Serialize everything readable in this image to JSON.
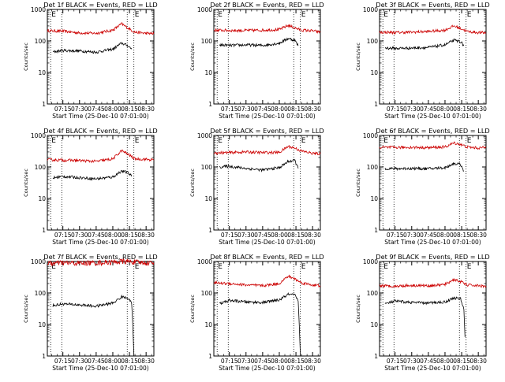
{
  "colors": {
    "events": "#000000",
    "lld": "#cc0000",
    "axes": "#000000",
    "background": "#ffffff"
  },
  "common": {
    "ylabel": "Counts/sec",
    "xlabel": "Start Time (25-Dec-10 07:01:00)",
    "marker_label": "E",
    "xticks": [
      "07:15",
      "07:30",
      "07:45",
      "08:00",
      "08:15",
      "08:30"
    ],
    "yticks": [
      "1",
      "10",
      "100",
      "1000"
    ]
  },
  "chart_data": [
    {
      "type": "line",
      "title": "Det 1f BLACK = Events, RED = LLD",
      "xlabel": "Start Time (25-Dec-10 07:01:00)",
      "ylabel": "Counts/sec",
      "yscale": "log",
      "ylim": [
        1,
        1000
      ],
      "xlim": [
        "07:01",
        "08:37"
      ],
      "x_ticks": [
        "07:15",
        "07:30",
        "07:45",
        "08:00",
        "08:15",
        "08:30"
      ],
      "markers": [
        "07:04",
        "07:14",
        "08:13",
        "08:19"
      ],
      "series": [
        {
          "name": "LLD",
          "x": [
            "07:01",
            "07:15",
            "07:30",
            "07:45",
            "08:00",
            "08:08",
            "08:14",
            "08:20",
            "08:30",
            "08:37"
          ],
          "values": [
            210,
            205,
            180,
            175,
            220,
            350,
            250,
            190,
            175,
            170
          ]
        },
        {
          "name": "Events",
          "x": [
            "07:06",
            "07:15",
            "07:30",
            "07:45",
            "08:00",
            "08:08",
            "08:14",
            "08:17"
          ],
          "values": [
            45,
            50,
            48,
            44,
            55,
            85,
            70,
            55
          ]
        }
      ]
    },
    {
      "type": "line",
      "title": "Det 2f BLACK = Events, RED = LLD",
      "xlabel": "Start Time (25-Dec-10 07:01:00)",
      "ylabel": "Counts/sec",
      "yscale": "log",
      "ylim": [
        1,
        1000
      ],
      "xlim": [
        "07:01",
        "08:37"
      ],
      "x_ticks": [
        "07:15",
        "07:30",
        "07:45",
        "08:00",
        "08:15",
        "08:30"
      ],
      "markers": [
        "07:04",
        "07:14",
        "08:13",
        "08:19"
      ],
      "series": [
        {
          "name": "LLD",
          "x": [
            "07:01",
            "07:15",
            "07:30",
            "07:45",
            "08:00",
            "08:08",
            "08:14",
            "08:20",
            "08:30",
            "08:37"
          ],
          "values": [
            220,
            215,
            215,
            220,
            230,
            310,
            260,
            220,
            210,
            190
          ]
        },
        {
          "name": "Events",
          "x": [
            "07:06",
            "07:15",
            "07:30",
            "07:45",
            "08:00",
            "08:08",
            "08:14",
            "08:17"
          ],
          "values": [
            75,
            72,
            75,
            72,
            85,
            120,
            105,
            70
          ]
        }
      ]
    },
    {
      "type": "line",
      "title": "Det 3f BLACK = Events, RED = LLD",
      "xlabel": "Start Time (25-Dec-10 07:01:00)",
      "ylabel": "Counts/sec",
      "yscale": "log",
      "ylim": [
        1,
        1000
      ],
      "xlim": [
        "07:01",
        "08:37"
      ],
      "x_ticks": [
        "07:15",
        "07:30",
        "07:45",
        "08:00",
        "08:15",
        "08:30"
      ],
      "markers": [
        "07:04",
        "07:14",
        "08:13",
        "08:19"
      ],
      "series": [
        {
          "name": "LLD",
          "x": [
            "07:01",
            "07:15",
            "07:30",
            "07:45",
            "08:00",
            "08:08",
            "08:14",
            "08:20",
            "08:30",
            "08:37"
          ],
          "values": [
            190,
            185,
            190,
            200,
            220,
            300,
            250,
            200,
            185,
            180
          ]
        },
        {
          "name": "Events",
          "x": [
            "07:06",
            "07:15",
            "07:30",
            "07:45",
            "08:00",
            "08:08",
            "08:14",
            "08:17"
          ],
          "values": [
            60,
            58,
            60,
            62,
            75,
            105,
            95,
            70
          ]
        }
      ]
    },
    {
      "type": "line",
      "title": "Det 4f BLACK = Events, RED = LLD",
      "xlabel": "Start Time (25-Dec-10 07:01:00)",
      "ylabel": "Counts/sec",
      "yscale": "log",
      "ylim": [
        1,
        1000
      ],
      "xlim": [
        "07:01",
        "08:37"
      ],
      "x_ticks": [
        "07:15",
        "07:30",
        "07:45",
        "08:00",
        "08:15",
        "08:30"
      ],
      "markers": [
        "07:04",
        "07:14",
        "08:13",
        "08:19"
      ],
      "series": [
        {
          "name": "LLD",
          "x": [
            "07:01",
            "07:15",
            "07:30",
            "07:45",
            "08:00",
            "08:08",
            "08:14",
            "08:20",
            "08:30",
            "08:37"
          ],
          "values": [
            170,
            165,
            160,
            150,
            180,
            330,
            250,
            180,
            175,
            165
          ]
        },
        {
          "name": "Events",
          "x": [
            "07:06",
            "07:15",
            "07:30",
            "07:45",
            "08:00",
            "08:08",
            "08:14",
            "08:17"
          ],
          "values": [
            45,
            50,
            46,
            42,
            48,
            75,
            65,
            50
          ]
        }
      ]
    },
    {
      "type": "line",
      "title": "Det 5f BLACK = Events, RED = LLD",
      "xlabel": "Start Time (25-Dec-10 07:01:00)",
      "ylabel": "Counts/sec",
      "yscale": "log",
      "ylim": [
        1,
        1000
      ],
      "xlim": [
        "07:01",
        "08:37"
      ],
      "x_ticks": [
        "07:15",
        "07:30",
        "07:45",
        "08:00",
        "08:15",
        "08:30"
      ],
      "markers": [
        "07:04",
        "07:14",
        "08:13",
        "08:19"
      ],
      "series": [
        {
          "name": "LLD",
          "x": [
            "07:01",
            "07:15",
            "07:30",
            "07:45",
            "08:00",
            "08:08",
            "08:14",
            "08:20",
            "08:30",
            "08:37"
          ],
          "values": [
            280,
            285,
            300,
            285,
            290,
            450,
            400,
            320,
            270,
            260
          ]
        },
        {
          "name": "Events",
          "x": [
            "07:06",
            "07:15",
            "07:30",
            "07:45",
            "08:00",
            "08:08",
            "08:14",
            "08:17"
          ],
          "values": [
            100,
            105,
            90,
            80,
            95,
            150,
            160,
            90
          ]
        }
      ]
    },
    {
      "type": "line",
      "title": "Det 6f BLACK = Events, RED = LLD",
      "xlabel": "Start Time (25-Dec-10 07:01:00)",
      "ylabel": "Counts/sec",
      "yscale": "log",
      "ylim": [
        1,
        1000
      ],
      "xlim": [
        "07:01",
        "08:37"
      ],
      "x_ticks": [
        "07:15",
        "07:30",
        "07:45",
        "08:00",
        "08:15",
        "08:30"
      ],
      "markers": [
        "07:04",
        "07:14",
        "08:13",
        "08:19"
      ],
      "series": [
        {
          "name": "LLD",
          "x": [
            "07:01",
            "07:15",
            "07:30",
            "07:45",
            "08:00",
            "08:08",
            "08:14",
            "08:20",
            "08:30",
            "08:37"
          ],
          "values": [
            420,
            415,
            420,
            410,
            430,
            580,
            520,
            430,
            400,
            420
          ]
        },
        {
          "name": "Events",
          "x": [
            "07:06",
            "07:15",
            "07:30",
            "07:45",
            "08:00",
            "08:08",
            "08:14",
            "08:17"
          ],
          "values": [
            90,
            88,
            90,
            88,
            95,
            130,
            120,
            75
          ]
        }
      ]
    },
    {
      "type": "line",
      "title": "Det 7f BLACK = Events, RED = LLD",
      "xlabel": "Start Time (25-Dec-10 07:01:00)",
      "ylabel": "Counts/sec",
      "yscale": "log",
      "ylim": [
        1,
        1000
      ],
      "xlim": [
        "07:01",
        "08:37"
      ],
      "x_ticks": [
        "07:15",
        "07:30",
        "07:45",
        "08:00",
        "08:15",
        "08:30"
      ],
      "markers": [
        "07:04",
        "07:14",
        "08:13",
        "08:19"
      ],
      "series": [
        {
          "name": "LLD",
          "x": [
            "07:01",
            "07:15",
            "07:30",
            "07:45",
            "08:00",
            "08:08",
            "08:14",
            "08:20",
            "08:30",
            "08:37"
          ],
          "values": [
            850,
            900,
            880,
            900,
            950,
            1000,
            1000,
            950,
            900,
            920
          ]
        },
        {
          "name": "Events",
          "x": [
            "07:06",
            "07:15",
            "07:30",
            "07:45",
            "08:00",
            "08:08",
            "08:14",
            "08:17",
            "08:18",
            "08:19"
          ],
          "values": [
            40,
            45,
            42,
            38,
            48,
            75,
            70,
            45,
            10,
            1
          ]
        }
      ]
    },
    {
      "type": "line",
      "title": "Det 8f BLACK = Events, RED = LLD",
      "xlabel": "Start Time (25-Dec-10 07:01:00)",
      "ylabel": "Counts/sec",
      "yscale": "log",
      "ylim": [
        1,
        1000
      ],
      "xlim": [
        "07:01",
        "08:37"
      ],
      "x_ticks": [
        "07:15",
        "07:30",
        "07:45",
        "08:00",
        "08:15",
        "08:30"
      ],
      "markers": [
        "07:04",
        "07:14",
        "08:13",
        "08:19"
      ],
      "series": [
        {
          "name": "LLD",
          "x": [
            "07:01",
            "07:15",
            "07:30",
            "07:45",
            "08:00",
            "08:08",
            "08:14",
            "08:20",
            "08:30",
            "08:37"
          ],
          "values": [
            210,
            200,
            180,
            170,
            200,
            340,
            280,
            210,
            180,
            170
          ]
        },
        {
          "name": "Events",
          "x": [
            "07:06",
            "07:15",
            "07:30",
            "07:45",
            "08:00",
            "08:08",
            "08:14",
            "08:17",
            "08:18",
            "08:19"
          ],
          "values": [
            45,
            58,
            52,
            50,
            60,
            90,
            85,
            55,
            10,
            1
          ]
        }
      ]
    },
    {
      "type": "line",
      "title": "Det 9f BLACK = Events, RED = LLD",
      "xlabel": "Start Time (25-Dec-10 07:01:00)",
      "ylabel": "Counts/sec",
      "yscale": "log",
      "ylim": [
        1,
        1000
      ],
      "xlim": [
        "07:01",
        "08:37"
      ],
      "x_ticks": [
        "07:15",
        "07:30",
        "07:45",
        "08:00",
        "08:15",
        "08:30"
      ],
      "markers": [
        "07:04",
        "07:14",
        "08:13",
        "08:19"
      ],
      "series": [
        {
          "name": "LLD",
          "x": [
            "07:01",
            "07:15",
            "07:30",
            "07:45",
            "08:00",
            "08:08",
            "08:14",
            "08:20",
            "08:30",
            "08:37"
          ],
          "values": [
            170,
            165,
            175,
            170,
            185,
            270,
            230,
            180,
            170,
            165
          ]
        },
        {
          "name": "Events",
          "x": [
            "07:06",
            "07:15",
            "07:30",
            "07:45",
            "08:00",
            "08:08",
            "08:14",
            "08:17",
            "08:18"
          ],
          "values": [
            45,
            55,
            50,
            48,
            52,
            70,
            65,
            30,
            4
          ]
        }
      ]
    }
  ]
}
